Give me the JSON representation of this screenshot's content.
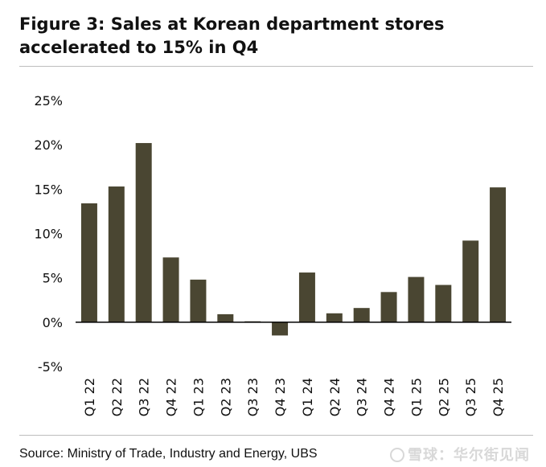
{
  "title": "Figure 3: Sales at Korean department stores accelerated to 15% in Q4",
  "source": "Source: Ministry of Trade, Industry and Energy, UBS",
  "watermark": "雪球：华尔街见闻",
  "colors": {
    "bar": "#4a4632",
    "axis": "#000000"
  },
  "chart_data": {
    "type": "bar",
    "title": "Figure 3: Sales at Korean department stores accelerated to 15% in Q4",
    "xlabel": "",
    "ylabel": "",
    "categories": [
      "Q1 22",
      "Q2 22",
      "Q3 22",
      "Q4 22",
      "Q1 23",
      "Q2 23",
      "Q3 23",
      "Q4 23",
      "Q1 24",
      "Q2 24",
      "Q3 24",
      "Q4 24",
      "Q1 25",
      "Q2 25",
      "Q3 25",
      "Q4 25"
    ],
    "values": [
      13.4,
      15.3,
      20.2,
      7.3,
      4.8,
      0.9,
      0.1,
      -1.5,
      5.6,
      1.0,
      1.6,
      3.4,
      5.1,
      4.2,
      9.2,
      15.2
    ],
    "ylim": [
      -5,
      25
    ],
    "yticks": [
      25,
      20,
      15,
      10,
      5,
      0,
      -5
    ],
    "ytick_labels": [
      "25%",
      "20%",
      "15%",
      "10%",
      "5%",
      "0%",
      "-5%"
    ],
    "grid": false,
    "legend": "none"
  }
}
